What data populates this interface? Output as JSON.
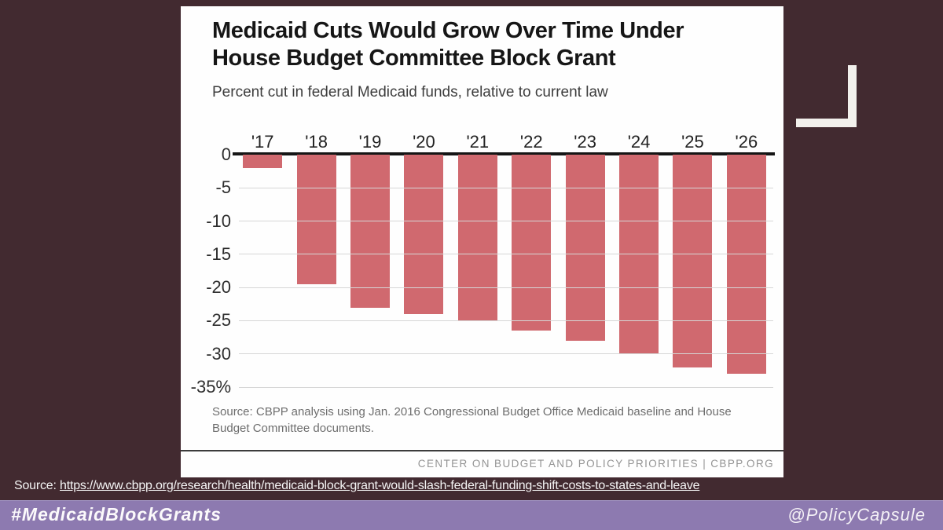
{
  "page": {
    "background_color": "#422a30",
    "accent_purple": "#8d7ab0"
  },
  "chart_card": {
    "title_line1": "Medicaid Cuts Would Grow Over Time Under",
    "title_line2": "House Budget Committee Block Grant",
    "subtitle": "Percent cut in federal Medicaid funds, relative to current law",
    "source_note": "Source: CBPP analysis using Jan. 2016 Congressional Budget Office Medicaid baseline and House Budget Committee documents.",
    "footer_branding": "CENTER ON BUDGET AND POLICY PRIORITIES | CBPP.ORG"
  },
  "chart_data": {
    "type": "bar",
    "title": "Medicaid Cuts Would Grow Over Time Under House Budget Committee Block Grant",
    "subtitle": "Percent cut in federal Medicaid funds, relative to current law",
    "categories": [
      "'17",
      "'18",
      "'19",
      "'20",
      "'21",
      "'22",
      "'23",
      "'24",
      "'25",
      "'26"
    ],
    "values": [
      -2,
      -19.5,
      -23,
      -24,
      -25,
      -26.5,
      -28,
      -30,
      -32,
      -33
    ],
    "ylabel": "Percent cut in federal Medicaid funds",
    "ylim": [
      -35,
      0
    ],
    "yticks": [
      0,
      -5,
      -10,
      -15,
      -20,
      -25,
      -30,
      -35
    ],
    "ytick_labels": [
      "0",
      "-5",
      "-10",
      "-15",
      "-20",
      "-25",
      "-30",
      "-35%"
    ],
    "grid": true,
    "legend": false,
    "bar_color": "#d0696f",
    "gridline_color": "#d6d6d6",
    "zero_line_color": "#151515"
  },
  "bottom": {
    "source_label": "Source:",
    "source_url": "https://www.cbpp.org/research/health/medicaid-block-grant-would-slash-federal-funding-shift-costs-to-states-and-leave",
    "hashtag": "#MedicaidBlockGrants",
    "handle": "@PolicyCapsule"
  }
}
